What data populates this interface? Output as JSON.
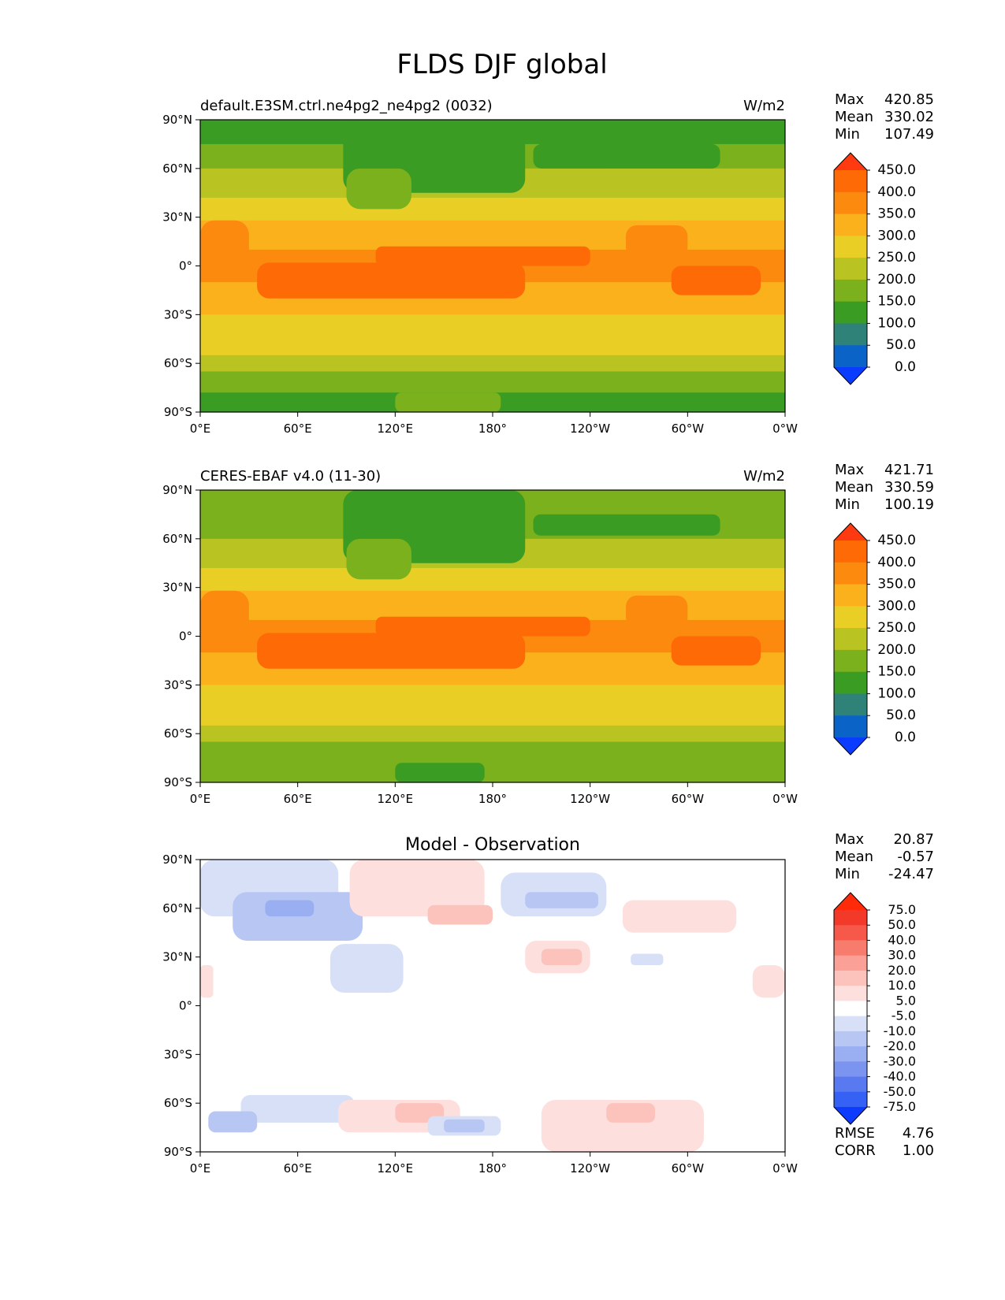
{
  "title": "FLDS DJF global",
  "chart_data": [
    {
      "type": "heatmap",
      "title_left": "default.E3SM.ctrl.ne4pg2_ne4pg2 (0032)",
      "title_center": "",
      "units": "W/m2",
      "stats": [
        {
          "label": "Max",
          "value": "420.85"
        },
        {
          "label": "Mean",
          "value": "330.02"
        },
        {
          "label": "Min",
          "value": "107.49"
        }
      ],
      "colorbar": {
        "levels": [
          "0.0",
          "50.0",
          "100.0",
          "150.0",
          "200.0",
          "250.0",
          "300.0",
          "350.0",
          "400.0",
          "450.0"
        ],
        "colors": [
          "#0a3cff",
          "#0a64c8",
          "#2f8277",
          "#3a9c22",
          "#7bb11c",
          "#b9c321",
          "#e9cf25",
          "#fbb11b",
          "#fb8a0e",
          "#fd6a06",
          "#ff3a10"
        ]
      },
      "x_ticks": [
        "0°E",
        "60°E",
        "120°E",
        "180°",
        "120°W",
        "60°W",
        "0°W"
      ],
      "y_ticks": [
        "90°N",
        "60°N",
        "30°N",
        "0°",
        "30°S",
        "60°S",
        "90°S"
      ],
      "xlim": [
        0,
        360
      ],
      "ylim": [
        -90,
        90
      ],
      "lat_bands": [
        {
          "lat": [
            75,
            90
          ],
          "level": 3
        },
        {
          "lat": [
            60,
            75
          ],
          "level": 4
        },
        {
          "lat": [
            42,
            60
          ],
          "level": 5
        },
        {
          "lat": [
            28,
            42
          ],
          "level": 6
        },
        {
          "lat": [
            10,
            28
          ],
          "level": 7
        },
        {
          "lat": [
            -10,
            10
          ],
          "level": 8
        },
        {
          "lat": [
            -30,
            -10
          ],
          "level": 7
        },
        {
          "lat": [
            -45,
            -30
          ],
          "level": 6
        },
        {
          "lat": [
            -55,
            -45
          ],
          "level": 6
        },
        {
          "lat": [
            -65,
            -55
          ],
          "level": 5
        },
        {
          "lat": [
            -78,
            -65
          ],
          "level": 4
        },
        {
          "lat": [
            -90,
            -78
          ],
          "level": 3
        }
      ],
      "regions": [
        {
          "lon": [
            88,
            200
          ],
          "lat": [
            45,
            90
          ],
          "level": 3
        },
        {
          "lon": [
            90,
            130
          ],
          "lat": [
            35,
            60
          ],
          "level": 4
        },
        {
          "lon": [
            205,
            320
          ],
          "lat": [
            60,
            75
          ],
          "level": 3
        },
        {
          "lon": [
            35,
            200
          ],
          "lat": [
            -20,
            2
          ],
          "level": 9
        },
        {
          "lon": [
            108,
            240
          ],
          "lat": [
            0,
            12
          ],
          "level": 9
        },
        {
          "lon": [
            290,
            345
          ],
          "lat": [
            -18,
            0
          ],
          "level": 9
        },
        {
          "lon": [
            262,
            300
          ],
          "lat": [
            5,
            25
          ],
          "level": 8
        },
        {
          "lon": [
            0,
            30
          ],
          "lat": [
            0,
            28
          ],
          "level": 8
        },
        {
          "lon": [
            120,
            185
          ],
          "lat": [
            -90,
            -78
          ],
          "level": 4
        }
      ]
    },
    {
      "type": "heatmap",
      "title_left": "CERES-EBAF v4.0 (11-30)",
      "title_center": "",
      "units": "W/m2",
      "stats": [
        {
          "label": "Max",
          "value": "421.71"
        },
        {
          "label": "Mean",
          "value": "330.59"
        },
        {
          "label": "Min",
          "value": "100.19"
        }
      ],
      "colorbar": {
        "levels": [
          "0.0",
          "50.0",
          "100.0",
          "150.0",
          "200.0",
          "250.0",
          "300.0",
          "350.0",
          "400.0",
          "450.0"
        ],
        "colors": [
          "#0a3cff",
          "#0a64c8",
          "#2f8277",
          "#3a9c22",
          "#7bb11c",
          "#b9c321",
          "#e9cf25",
          "#fbb11b",
          "#fb8a0e",
          "#fd6a06",
          "#ff3a10"
        ]
      },
      "x_ticks": [
        "0°E",
        "60°E",
        "120°E",
        "180°",
        "120°W",
        "60°W",
        "0°W"
      ],
      "y_ticks": [
        "90°N",
        "60°N",
        "30°N",
        "0°",
        "30°S",
        "60°S",
        "90°S"
      ],
      "xlim": [
        0,
        360
      ],
      "ylim": [
        -90,
        90
      ],
      "lat_bands": [
        {
          "lat": [
            75,
            90
          ],
          "level": 4
        },
        {
          "lat": [
            60,
            75
          ],
          "level": 4
        },
        {
          "lat": [
            42,
            60
          ],
          "level": 5
        },
        {
          "lat": [
            28,
            42
          ],
          "level": 6
        },
        {
          "lat": [
            10,
            28
          ],
          "level": 7
        },
        {
          "lat": [
            -10,
            10
          ],
          "level": 8
        },
        {
          "lat": [
            -30,
            -10
          ],
          "level": 7
        },
        {
          "lat": [
            -45,
            -30
          ],
          "level": 6
        },
        {
          "lat": [
            -55,
            -45
          ],
          "level": 6
        },
        {
          "lat": [
            -65,
            -55
          ],
          "level": 5
        },
        {
          "lat": [
            -78,
            -65
          ],
          "level": 4
        },
        {
          "lat": [
            -90,
            -78
          ],
          "level": 4
        }
      ],
      "regions": [
        {
          "lon": [
            88,
            200
          ],
          "lat": [
            45,
            90
          ],
          "level": 3
        },
        {
          "lon": [
            90,
            130
          ],
          "lat": [
            35,
            60
          ],
          "level": 4
        },
        {
          "lon": [
            205,
            320
          ],
          "lat": [
            62,
            75
          ],
          "level": 3
        },
        {
          "lon": [
            35,
            200
          ],
          "lat": [
            -20,
            2
          ],
          "level": 9
        },
        {
          "lon": [
            108,
            240
          ],
          "lat": [
            0,
            12
          ],
          "level": 9
        },
        {
          "lon": [
            290,
            345
          ],
          "lat": [
            -18,
            0
          ],
          "level": 9
        },
        {
          "lon": [
            262,
            300
          ],
          "lat": [
            5,
            25
          ],
          "level": 8
        },
        {
          "lon": [
            0,
            30
          ],
          "lat": [
            0,
            28
          ],
          "level": 8
        },
        {
          "lon": [
            120,
            175
          ],
          "lat": [
            -90,
            -78
          ],
          "level": 3
        }
      ]
    },
    {
      "type": "heatmap",
      "title_left": "",
      "title_center": "Model - Observation",
      "units": "",
      "stats": [
        {
          "label": "Max",
          "value": "20.87"
        },
        {
          "label": "Mean",
          "value": "-0.57"
        },
        {
          "label": "Min",
          "value": "-24.47"
        }
      ],
      "colorbar": {
        "levels": [
          "-75.0",
          "-50.0",
          "-40.0",
          "-30.0",
          "-20.0",
          "-10.0",
          "-5.0",
          "5.0",
          "10.0",
          "20.0",
          "30.0",
          "40.0",
          "50.0",
          "75.0"
        ],
        "colors": [
          "#0e3cff",
          "#3661f5",
          "#5979f0",
          "#7b94ef",
          "#9aaef2",
          "#b8c6f4",
          "#d8e0f8",
          "#ffffff",
          "#fde0dd",
          "#fcc3bd",
          "#fba096",
          "#f87c6e",
          "#f6584a",
          "#f33a2a",
          "#ff2a0a"
        ]
      },
      "x_ticks": [
        "0°E",
        "60°E",
        "120°E",
        "180°",
        "120°W",
        "60°W",
        "0°W"
      ],
      "y_ticks": [
        "90°N",
        "60°N",
        "30°N",
        "0°",
        "30°S",
        "60°S",
        "90°S"
      ],
      "xlim": [
        0,
        360
      ],
      "ylim": [
        -90,
        90
      ],
      "lat_bands": [
        {
          "lat": [
            -90,
            90
          ],
          "level": 7
        }
      ],
      "regions": [
        {
          "lon": [
            0,
            85
          ],
          "lat": [
            55,
            90
          ],
          "level": 6
        },
        {
          "lon": [
            20,
            100
          ],
          "lat": [
            40,
            70
          ],
          "level": 5
        },
        {
          "lon": [
            40,
            70
          ],
          "lat": [
            55,
            65
          ],
          "level": 4
        },
        {
          "lon": [
            92,
            175
          ],
          "lat": [
            55,
            90
          ],
          "level": 8
        },
        {
          "lon": [
            140,
            180
          ],
          "lat": [
            50,
            62
          ],
          "level": 9
        },
        {
          "lon": [
            185,
            250
          ],
          "lat": [
            55,
            82
          ],
          "level": 6
        },
        {
          "lon": [
            200,
            245
          ],
          "lat": [
            60,
            70
          ],
          "level": 5
        },
        {
          "lon": [
            260,
            330
          ],
          "lat": [
            45,
            65
          ],
          "level": 8
        },
        {
          "lon": [
            200,
            240
          ],
          "lat": [
            20,
            40
          ],
          "level": 8
        },
        {
          "lon": [
            210,
            235
          ],
          "lat": [
            25,
            35
          ],
          "level": 9
        },
        {
          "lon": [
            265,
            285
          ],
          "lat": [
            25,
            32
          ],
          "level": 6
        },
        {
          "lon": [
            80,
            125
          ],
          "lat": [
            8,
            38
          ],
          "level": 6
        },
        {
          "lon": [
            340,
            360
          ],
          "lat": [
            5,
            25
          ],
          "level": 8
        },
        {
          "lon": [
            0,
            8
          ],
          "lat": [
            5,
            25
          ],
          "level": 8
        },
        {
          "lon": [
            25,
            95
          ],
          "lat": [
            -72,
            -55
          ],
          "level": 6
        },
        {
          "lon": [
            5,
            35
          ],
          "lat": [
            -78,
            -65
          ],
          "level": 5
        },
        {
          "lon": [
            85,
            160
          ],
          "lat": [
            -78,
            -58
          ],
          "level": 8
        },
        {
          "lon": [
            120,
            150
          ],
          "lat": [
            -72,
            -60
          ],
          "level": 9
        },
        {
          "lon": [
            140,
            185
          ],
          "lat": [
            -80,
            -68
          ],
          "level": 6
        },
        {
          "lon": [
            150,
            175
          ],
          "lat": [
            -78,
            -70
          ],
          "level": 5
        },
        {
          "lon": [
            210,
            310
          ],
          "lat": [
            -90,
            -58
          ],
          "level": 8
        },
        {
          "lon": [
            250,
            280
          ],
          "lat": [
            -72,
            -60
          ],
          "level": 9
        }
      ],
      "footer_stats": [
        {
          "label": "RMSE",
          "value": "4.76"
        },
        {
          "label": "CORR",
          "value": "1.00"
        }
      ]
    }
  ]
}
